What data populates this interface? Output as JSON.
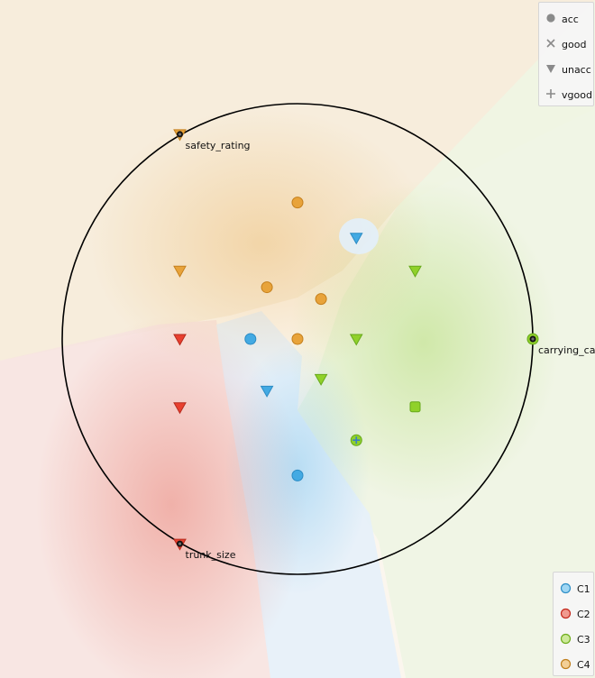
{
  "legends": {
    "shape_legend": {
      "items": [
        {
          "label": "acc",
          "symbol": "circle",
          "icon": "circle-icon"
        },
        {
          "label": "good",
          "symbol": "cross",
          "icon": "x-cross-icon"
        },
        {
          "label": "unacc",
          "symbol": "triangle",
          "icon": "triangle-down-icon"
        },
        {
          "label": "vgood",
          "symbol": "plus",
          "icon": "plus-icon"
        }
      ]
    },
    "cluster_legend": {
      "items": [
        {
          "label": "C1",
          "color": "#44aee6"
        },
        {
          "label": "C2",
          "color": "#e8402f"
        },
        {
          "label": "C3",
          "color": "#96d52a"
        },
        {
          "label": "C4",
          "color": "#e8a33a"
        }
      ]
    }
  },
  "chart_data": {
    "type": "scatter",
    "title": "",
    "xlabel": "",
    "ylabel": "",
    "xlim": [
      -1.1,
      1.1
    ],
    "ylim": [
      -1.1,
      1.1
    ],
    "grid": false,
    "legend_placement": [
      "top-right",
      "bottom-right"
    ],
    "anchors": [
      {
        "label": "safety_rating",
        "x": -0.5,
        "y": 0.87
      },
      {
        "label": "carrying_cap",
        "x": 1.0,
        "y": 0.0
      },
      {
        "label": "trunk_size",
        "x": -0.5,
        "y": -0.87
      }
    ],
    "points": [
      {
        "x": 0.0,
        "y": 0.58,
        "cluster": "C4",
        "symbol": "circle"
      },
      {
        "x": 0.25,
        "y": 0.43,
        "cluster": "C1",
        "symbol": "triangle"
      },
      {
        "x": -0.5,
        "y": 0.29,
        "cluster": "C4",
        "symbol": "triangle"
      },
      {
        "x": -0.13,
        "y": 0.22,
        "cluster": "C4",
        "symbol": "circle"
      },
      {
        "x": 0.1,
        "y": 0.17,
        "cluster": "C4",
        "symbol": "circle"
      },
      {
        "x": 0.5,
        "y": 0.29,
        "cluster": "C3",
        "symbol": "triangle"
      },
      {
        "x": -0.5,
        "y": 0.0,
        "cluster": "C2",
        "symbol": "triangle"
      },
      {
        "x": -0.2,
        "y": 0.0,
        "cluster": "C1",
        "symbol": "circle"
      },
      {
        "x": 0.0,
        "y": 0.0,
        "cluster": "C4",
        "symbol": "circle"
      },
      {
        "x": 0.25,
        "y": 0.0,
        "cluster": "C3",
        "symbol": "triangle"
      },
      {
        "x": 0.1,
        "y": -0.17,
        "cluster": "C3",
        "symbol": "triangle"
      },
      {
        "x": -0.13,
        "y": -0.22,
        "cluster": "C1",
        "symbol": "triangle"
      },
      {
        "x": -0.5,
        "y": -0.29,
        "cluster": "C2",
        "symbol": "triangle"
      },
      {
        "x": 0.5,
        "y": -0.29,
        "cluster": "C3",
        "symbol": "square"
      },
      {
        "x": 0.25,
        "y": -0.43,
        "cluster": "C3",
        "symbol": "plus"
      },
      {
        "x": 0.0,
        "y": -0.58,
        "cluster": "C1",
        "symbol": "circle"
      },
      {
        "x": -0.5,
        "y": 0.87,
        "cluster": "C4",
        "symbol": "triangle"
      },
      {
        "x": 1.0,
        "y": 0.0,
        "cluster": "C3",
        "symbol": "circle"
      },
      {
        "x": -0.5,
        "y": -0.87,
        "cluster": "C2",
        "symbol": "triangle"
      }
    ]
  }
}
